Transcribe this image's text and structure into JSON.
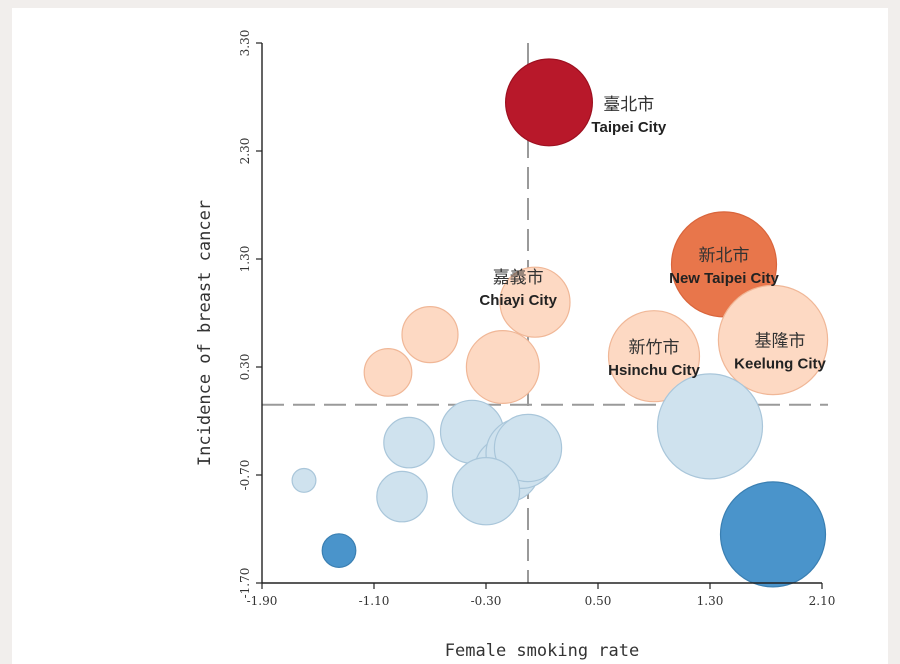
{
  "chart_data": {
    "type": "scatter",
    "xlabel": "Female smoking rate",
    "ylabel": "Incidence of breast cancer",
    "xlim": [
      -1.9,
      2.1
    ],
    "ylim": [
      -1.7,
      3.3
    ],
    "xticks": [
      "-1.90",
      "-1.10",
      "-0.30",
      "0.50",
      "1.30",
      "2.10"
    ],
    "yticks": [
      "-1.70",
      "-0.70",
      "0.30",
      "1.30",
      "2.30",
      "3.30"
    ],
    "reference_lines": {
      "x": 0.0,
      "y": -0.05
    },
    "bubble_size_unit": "x-axis units (diameter)",
    "colors": {
      "dark_red": "#b8182a",
      "orange": "#e8764b",
      "peach": "#fdd9c3",
      "light_blue": "#cfe2ee",
      "blue": "#4a94cb",
      "axis": "#222222",
      "reference": "#9a9a9a"
    },
    "points": [
      {
        "x": 0.15,
        "y": 2.75,
        "size": 0.62,
        "color": "dark_red"
      },
      {
        "x": 1.4,
        "y": 1.25,
        "size": 0.75,
        "color": "orange"
      },
      {
        "x": 1.75,
        "y": 0.55,
        "size": 0.78,
        "color": "peach"
      },
      {
        "x": 0.9,
        "y": 0.4,
        "size": 0.65,
        "color": "peach"
      },
      {
        "x": 0.05,
        "y": 0.9,
        "size": 0.5,
        "color": "peach"
      },
      {
        "x": -0.18,
        "y": 0.3,
        "size": 0.52,
        "color": "peach"
      },
      {
        "x": -0.7,
        "y": 0.6,
        "size": 0.4,
        "color": "peach"
      },
      {
        "x": -1.0,
        "y": 0.25,
        "size": 0.34,
        "color": "peach"
      },
      {
        "x": 1.3,
        "y": -0.25,
        "size": 0.75,
        "color": "light_blue"
      },
      {
        "x": -0.4,
        "y": -0.3,
        "size": 0.45,
        "color": "light_blue"
      },
      {
        "x": -0.15,
        "y": -0.65,
        "size": 0.46,
        "color": "light_blue"
      },
      {
        "x": -0.05,
        "y": -0.5,
        "size": 0.5,
        "color": "light_blue"
      },
      {
        "x": 0.0,
        "y": -0.45,
        "size": 0.48,
        "color": "light_blue"
      },
      {
        "x": -0.3,
        "y": -0.85,
        "size": 0.48,
        "color": "light_blue"
      },
      {
        "x": -0.85,
        "y": -0.4,
        "size": 0.36,
        "color": "light_blue"
      },
      {
        "x": -0.9,
        "y": -0.9,
        "size": 0.36,
        "color": "light_blue"
      },
      {
        "x": -1.6,
        "y": -0.75,
        "size": 0.17,
        "color": "light_blue"
      },
      {
        "x": 1.75,
        "y": -1.25,
        "size": 0.75,
        "color": "blue"
      },
      {
        "x": -1.35,
        "y": -1.4,
        "size": 0.24,
        "color": "blue"
      }
    ],
    "annotations": [
      {
        "zh": "臺北市",
        "en": "Taipei City",
        "x": 0.72,
        "y": 2.55,
        "color": "dark"
      },
      {
        "zh": "新北市",
        "en": "New Taipei City",
        "x": 1.4,
        "y": 1.15,
        "color": "light"
      },
      {
        "zh": "嘉義市",
        "en": "Chiayi City",
        "x": -0.07,
        "y": 0.95,
        "color": "dark"
      },
      {
        "zh": "新竹市",
        "en": "Hsinchu City",
        "x": 0.9,
        "y": 0.3,
        "color": "dark"
      },
      {
        "zh": "基隆市",
        "en": "Keelung City",
        "x": 1.8,
        "y": 0.36,
        "color": "dark"
      }
    ]
  }
}
